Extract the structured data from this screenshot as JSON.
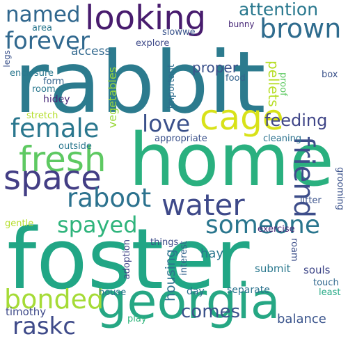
{
  "words": [
    {
      "text": "rabbit",
      "color": "#2c7b8e"
    },
    {
      "text": "home",
      "color": "#2ab07f"
    },
    {
      "text": "foster",
      "color": "#21a685"
    },
    {
      "text": "georgia",
      "color": "#26a784"
    },
    {
      "text": "looking",
      "color": "#481c6e"
    },
    {
      "text": "forever",
      "color": "#30688e"
    },
    {
      "text": "brown",
      "color": "#2f6c8e"
    },
    {
      "text": "named",
      "color": "#30678e"
    },
    {
      "text": "attention",
      "color": "#29788e"
    },
    {
      "text": "cage",
      "color": "#d8e219"
    },
    {
      "text": "love",
      "color": "#3b518b"
    },
    {
      "text": "fresh",
      "color": "#5ec962"
    },
    {
      "text": "female",
      "color": "#2a778e"
    },
    {
      "text": "space",
      "color": "#433e85"
    },
    {
      "text": "water",
      "color": "#3e4989"
    },
    {
      "text": "friend",
      "color": "#3d4d8a"
    },
    {
      "text": "raboot",
      "color": "#2c728e"
    },
    {
      "text": "spayed",
      "color": "#2fb47c"
    },
    {
      "text": "someone",
      "color": "#2a768e"
    },
    {
      "text": "bonded",
      "color": "#a5db36"
    },
    {
      "text": "raskc",
      "color": "#3e4a89"
    },
    {
      "text": "comes",
      "color": "#3b528b"
    },
    {
      "text": "feeding",
      "color": "#404688"
    },
    {
      "text": "proper",
      "color": "#3b518b"
    },
    {
      "text": "access",
      "color": "#31688e"
    },
    {
      "text": "pellets",
      "color": "#b8de29"
    },
    {
      "text": "vegetables",
      "color": "#9bd93c"
    },
    {
      "text": "housing",
      "color": "#2c728e"
    },
    {
      "text": "balance",
      "color": "#3a548c"
    },
    {
      "text": "timothy",
      "color": "#3e4a89"
    },
    {
      "text": "hay",
      "color": "#2a778e"
    },
    {
      "text": "day",
      "color": "#2e6e8e"
    },
    {
      "text": "separate",
      "color": "#2c728e"
    },
    {
      "text": "submit",
      "color": "#2a788e"
    },
    {
      "text": "souls",
      "color": "#3f4788"
    },
    {
      "text": "touch",
      "color": "#31688e"
    },
    {
      "text": "least",
      "color": "#22a884"
    },
    {
      "text": "house",
      "color": "#2a788e"
    },
    {
      "text": "play",
      "color": "#30b57c"
    },
    {
      "text": "adoption",
      "color": "#414487"
    },
    {
      "text": "interest",
      "color": "#33638d"
    },
    {
      "text": "roam",
      "color": "#3c4f8a"
    },
    {
      "text": "things",
      "color": "#3d4d8a"
    },
    {
      "text": "exercise",
      "color": "#482878"
    },
    {
      "text": "litter",
      "color": "#3b528b"
    },
    {
      "text": "grooming",
      "color": "#3b528b"
    },
    {
      "text": "gentle",
      "color": "#b5de2b"
    },
    {
      "text": "outside",
      "color": "#2a778e"
    },
    {
      "text": "appropriate",
      "color": "#3b518b"
    },
    {
      "text": "cleaning",
      "color": "#2c728e"
    },
    {
      "text": "stretch",
      "color": "#b5de2b"
    },
    {
      "text": "hidey",
      "color": "#482878"
    },
    {
      "text": "room",
      "color": "#2a788e"
    },
    {
      "text": "form",
      "color": "#33638d"
    },
    {
      "text": "enclosure",
      "color": "#2a778e"
    },
    {
      "text": "important",
      "color": "#2e6e8e"
    },
    {
      "text": "food",
      "color": "#33638d"
    },
    {
      "text": "proof",
      "color": "#5ec962"
    },
    {
      "text": "box",
      "color": "#3b528b"
    },
    {
      "text": "legs",
      "color": "#3b528b"
    },
    {
      "text": "area",
      "color": "#2a778e"
    },
    {
      "text": "explore",
      "color": "#3e4a89"
    },
    {
      "text": "slowwe",
      "color": "#3a548c"
    },
    {
      "text": "bunny",
      "color": "#482878"
    }
  ]
}
